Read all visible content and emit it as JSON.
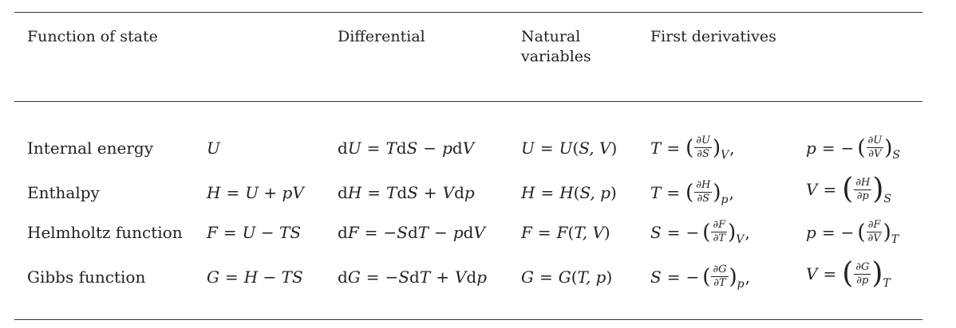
{
  "headers": {
    "function_of_state": "Function of state",
    "differential": "Differential",
    "natural_variables_line1": "Natural",
    "natural_variables_line2": "variables",
    "first_derivatives": "First derivatives"
  },
  "rows": [
    {
      "name": "Internal energy",
      "symbol": "U",
      "definition": "",
      "differential": {
        "lhs": "U",
        "t1": "T",
        "d1": "S",
        "op": "−",
        "t2": "p",
        "d2": "V"
      },
      "natural": {
        "fn": "U",
        "vars": "S, V"
      },
      "deriv1": {
        "lhs": "T",
        "sign": "",
        "num": "∂U",
        "den": "∂S",
        "sub": "V",
        "tall": false
      },
      "deriv2": {
        "lhs": "p",
        "sign": "−",
        "num": "∂U",
        "den": "∂V",
        "sub": "S",
        "tall": false
      }
    },
    {
      "name": "Enthalpy",
      "symbol": "H",
      "definition": "U + pV",
      "differential": {
        "lhs": "H",
        "t1": "T",
        "d1": "S",
        "op": "+",
        "t2": "V",
        "d2": "p"
      },
      "natural": {
        "fn": "H",
        "vars": "S, p"
      },
      "deriv1": {
        "lhs": "T",
        "sign": "",
        "num": "∂H",
        "den": "∂S",
        "sub": "p",
        "tall": false
      },
      "deriv2": {
        "lhs": "V",
        "sign": "",
        "num": "∂H",
        "den": "∂p",
        "sub": "S",
        "tall": true
      }
    },
    {
      "name": "Helmholtz function",
      "symbol": "F",
      "definition": "U − TS",
      "differential": {
        "lhs": "F",
        "t1": "−S",
        "d1": "T",
        "op": "−",
        "t2": "p",
        "d2": "V"
      },
      "natural": {
        "fn": "F",
        "vars": "T, V"
      },
      "deriv1": {
        "lhs": "S",
        "sign": "−",
        "num": "∂F",
        "den": "∂T",
        "sub": "V",
        "tall": false
      },
      "deriv2": {
        "lhs": "p",
        "sign": "−",
        "num": "∂F",
        "den": "∂V",
        "sub": "T",
        "tall": false
      }
    },
    {
      "name": "Gibbs function",
      "symbol": "G",
      "definition": "H − TS",
      "differential": {
        "lhs": "G",
        "t1": "−S",
        "d1": "T",
        "op": "+",
        "t2": "V",
        "d2": "p"
      },
      "natural": {
        "fn": "G",
        "vars": "T, p"
      },
      "deriv1": {
        "lhs": "S",
        "sign": "−",
        "num": "∂G",
        "den": "∂T",
        "sub": "p",
        "tall": false
      },
      "deriv2": {
        "lhs": "V",
        "sign": "",
        "num": "∂G",
        "den": "∂p",
        "sub": "T",
        "tall": true
      }
    }
  ]
}
